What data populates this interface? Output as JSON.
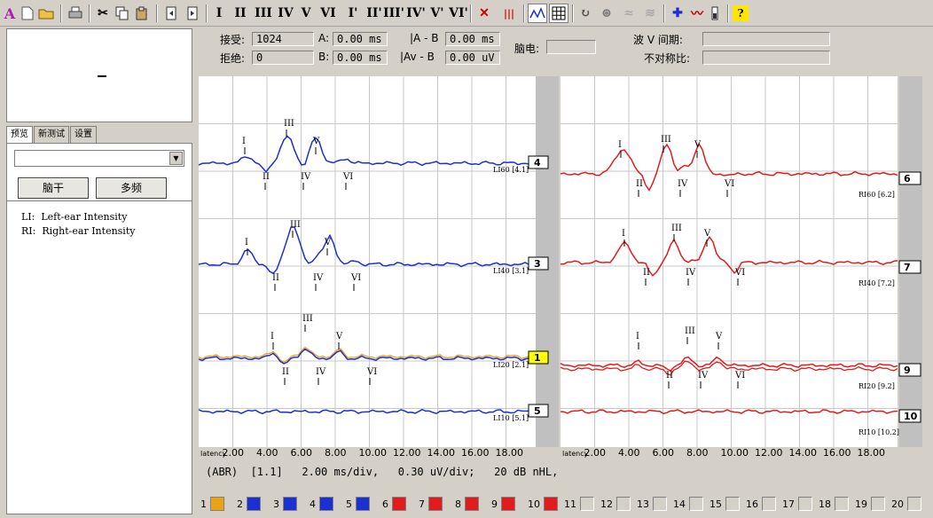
{
  "toolbar": {
    "roman_buttons": [
      "I",
      "II",
      "III",
      "IV",
      "V",
      "VI",
      "I'",
      "II'",
      "III'",
      "IV'",
      "V'",
      "VI'"
    ],
    "icons": [
      "app-logo-icon",
      "new-file-icon",
      "open-folder-icon",
      "print-icon",
      "cut-icon",
      "copy-icon",
      "paste-icon",
      "prev-page-icon",
      "next-page-icon",
      "clear-marks-icon",
      "waveform-icon",
      "curve-icon",
      "grid-icon",
      "rotate-icon",
      "refresh-icon",
      "wave-off-icon",
      "wave-flip-icon",
      "add-wave-icon",
      "remove-wave-icon",
      "battery-icon",
      "help-icon"
    ]
  },
  "info": {
    "accept_label": "接受:",
    "accept_value": "1024",
    "reject_label": "拒绝:",
    "reject_value": "0",
    "a_label": "A:",
    "a_value": "0.00 ms",
    "b_label": "B:",
    "b_value": "0.00 ms",
    "ab_label": "|A - B",
    "ab_value": "0.00 ms",
    "avb_label": "|Av - B",
    "avb_value": "0.00 uV",
    "eeg_label": "脑电:",
    "wave_interval_label": "波 V 间期:",
    "asymmetry_label": "不对称比:"
  },
  "left": {
    "tabs": [
      "预览",
      "新测试",
      "设置"
    ],
    "buttons": [
      "脑干",
      "多频"
    ],
    "legend": [
      "LI:  Left-ear Intensity",
      "RI:  Right-ear Intensity"
    ]
  },
  "colors": {
    "blue": "#1c2fd0",
    "red": "#e21c1c",
    "orange": "#e8a317",
    "grid": "#c8c8c8"
  },
  "plot": {
    "x_ticks": [
      "latency",
      "2.00",
      "4.00",
      "6.00",
      "8.00",
      "10.00",
      "12.00",
      "14.00",
      "16.00",
      "18.00"
    ],
    "left_traces": [
      {
        "label": "LI60 [4.1]",
        "channel": "4",
        "peaks": [
          "I",
          "II",
          "III",
          "IV",
          "V",
          "VI"
        ]
      },
      {
        "label": "LI40 [3.1]",
        "channel": "3",
        "peaks": [
          "I",
          "II",
          "III",
          "IV",
          "V",
          "VI"
        ]
      },
      {
        "label": "LI20 [2.1]",
        "channel": "1",
        "peaks": [
          "I",
          "II",
          "III",
          "IV",
          "V",
          "VI"
        ]
      },
      {
        "label": "LI10 [5.1]",
        "channel": "5",
        "peaks": []
      }
    ],
    "right_traces": [
      {
        "label": "RI60 [6.2]",
        "channel": "6",
        "peaks": [
          "I",
          "II",
          "III",
          "IV",
          "V",
          "VI"
        ]
      },
      {
        "label": "RI40 [7.2]",
        "channel": "7",
        "peaks": [
          "I",
          "II",
          "III",
          "IV",
          "V",
          "VI"
        ]
      },
      {
        "label": "RI20 [9.2]",
        "channel": "9",
        "peaks": [
          "I",
          "II",
          "III",
          "IV",
          "V",
          "VI"
        ]
      },
      {
        "label": "RI10 [10.2]",
        "channel": "10",
        "peaks": []
      }
    ]
  },
  "status_text": "(ABR)  [1.1]   2.00 ms/div,   0.30 uV/div;   20 dB nHL,",
  "channels": [
    {
      "n": "1",
      "color": "#e8a317"
    },
    {
      "n": "2",
      "color": "#1c2fd0"
    },
    {
      "n": "3",
      "color": "#1c2fd0"
    },
    {
      "n": "4",
      "color": "#1c2fd0"
    },
    {
      "n": "5",
      "color": "#1c2fd0"
    },
    {
      "n": "6",
      "color": "#e21c1c"
    },
    {
      "n": "7",
      "color": "#e21c1c"
    },
    {
      "n": "8",
      "color": "#e21c1c"
    },
    {
      "n": "9",
      "color": "#e21c1c"
    },
    {
      "n": "10",
      "color": "#e21c1c"
    },
    {
      "n": "11",
      "color": ""
    },
    {
      "n": "12",
      "color": ""
    },
    {
      "n": "13",
      "color": ""
    },
    {
      "n": "14",
      "color": ""
    },
    {
      "n": "15",
      "color": ""
    },
    {
      "n": "16",
      "color": ""
    },
    {
      "n": "17",
      "color": ""
    },
    {
      "n": "18",
      "color": ""
    },
    {
      "n": "19",
      "color": ""
    },
    {
      "n": "20",
      "color": ""
    }
  ]
}
